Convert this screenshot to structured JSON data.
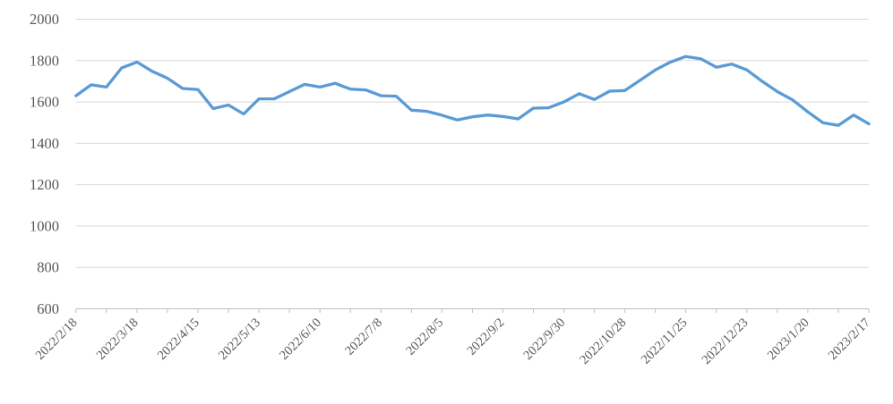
{
  "chart_data": {
    "type": "line",
    "title": "",
    "legend": "none",
    "grid": "horizontal",
    "n_points": 53,
    "x_axis": {
      "tick_labels": [
        "2022/2/18",
        "2022/3/18",
        "2022/4/15",
        "2022/5/13",
        "2022/6/10",
        "2022/7/8",
        "2022/8/5",
        "2022/9/2",
        "2022/9/30",
        "2022/10/28",
        "2022/11/25",
        "2022/12/23",
        "2023/1/20",
        "2023/2/17"
      ],
      "label_every_n_points": 4,
      "tick_mark_every_n_points": 2,
      "label_rotation_deg": 45
    },
    "y_axis": {
      "ticks": [
        600,
        800,
        1000,
        1200,
        1400,
        1600,
        1800,
        2000
      ],
      "min": 600,
      "max": 2000
    },
    "series": [
      {
        "name": "",
        "color": "#5B9BD5",
        "values": [
          1630,
          1683,
          1672,
          1765,
          1793,
          1748,
          1715,
          1665,
          1660,
          1568,
          1585,
          1542,
          1615,
          1615,
          1650,
          1685,
          1672,
          1690,
          1662,
          1658,
          1630,
          1628,
          1560,
          1555,
          1536,
          1513,
          1528,
          1537,
          1530,
          1518,
          1570,
          1572,
          1600,
          1640,
          1612,
          1652,
          1655,
          1705,
          1755,
          1793,
          1820,
          1808,
          1768,
          1783,
          1755,
          1700,
          1650,
          1610,
          1552,
          1499,
          1487,
          1537,
          1494
        ]
      }
    ]
  },
  "style": {
    "line_color": "#5B9BD5",
    "gridline_color": "#D9D9D9",
    "axis_line_color": "#BFBFBF",
    "tick_label_color": "#595959",
    "background": "#FFFFFF"
  }
}
